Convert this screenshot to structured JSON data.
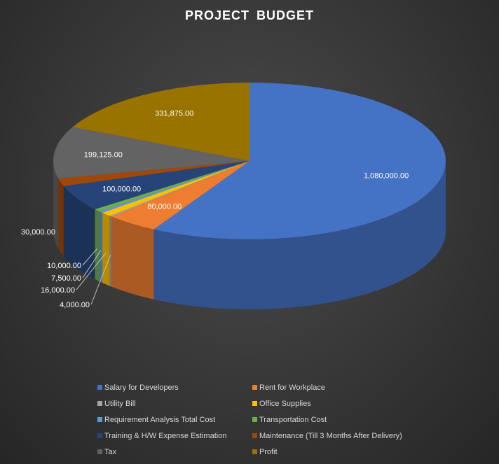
{
  "title": "PROJECT  BUDGET",
  "chart_data": {
    "type": "pie",
    "title": "PROJECT  BUDGET",
    "legend_position": "bottom",
    "labels": [
      "Salary for Developers",
      "Rent for Workplace",
      "Utility Bill",
      "Office Supplies",
      "Requirement Analysis Total Cost",
      "Transportation Cost",
      "Training & H/W Expense Estimation",
      "Maintenance (Till 3 Months After Delivery)",
      "Tax",
      "Profit"
    ],
    "values": [
      1080000,
      80000,
      4000,
      16000,
      7500,
      10000,
      100000,
      30000,
      199125,
      331875
    ],
    "value_labels": [
      "1,080,000.00",
      "80,000.00",
      "4,000.00",
      "16,000.00",
      "7,500.00",
      "10,000.00",
      "100,000.00",
      "30,000.00",
      "199,125.00",
      "331,875.00"
    ],
    "colors": [
      "#4472c4",
      "#ed7d31",
      "#a5a5a5",
      "#ffc000",
      "#5b9bd5",
      "#70ad47",
      "#264478",
      "#9e480e",
      "#636363",
      "#997300"
    ],
    "legend_order": [
      0,
      1,
      2,
      3,
      4,
      5,
      6,
      7,
      8,
      9
    ]
  }
}
